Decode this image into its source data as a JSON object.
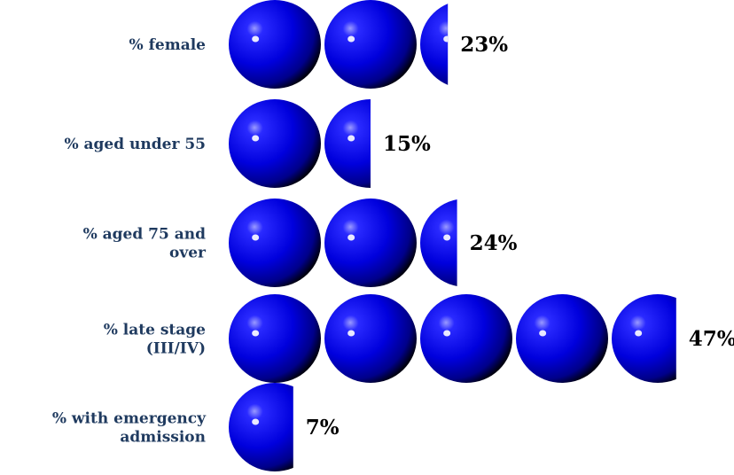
{
  "chart_data": {
    "type": "bar",
    "categories": [
      [
        "% female"
      ],
      [
        "% aged under 55"
      ],
      [
        "% aged 75 and",
        "over"
      ],
      [
        "% late stage",
        "(III/IV)"
      ],
      [
        "% with emergency",
        "admission"
      ]
    ],
    "values": [
      23,
      15,
      24,
      47,
      7
    ],
    "value_labels": [
      "23%",
      "15%",
      "24%",
      "47%",
      "7%"
    ],
    "unit_per_icon": 10,
    "icon": "blue-sphere-icon",
    "colors": {
      "sphere_highlight": "#9a9aff",
      "sphere_mid": "#2424ff",
      "sphere_body": "#0000dd",
      "sphere_shadow": "#000010",
      "label": "#1f3a5f",
      "value": "#000000"
    }
  }
}
